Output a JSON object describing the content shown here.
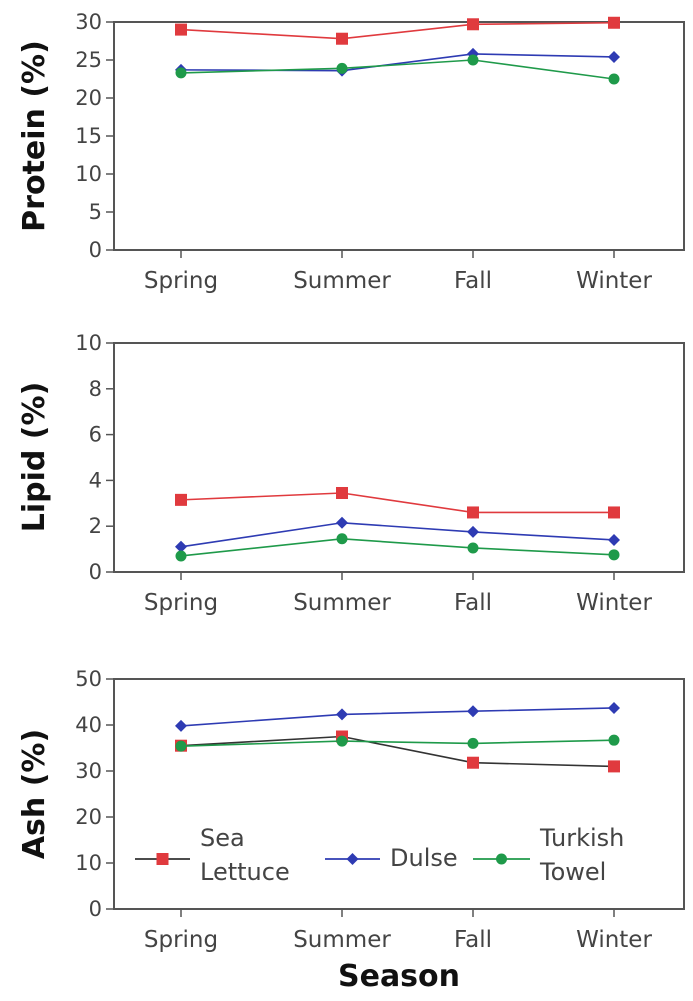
{
  "chart_data": [
    {
      "type": "line",
      "ylabel": "Protein (%)",
      "xlabel": "",
      "categories": [
        "Spring",
        "Summer",
        "Fall",
        "Winter"
      ],
      "ylim": [
        0,
        30
      ],
      "yticks": [
        0,
        5,
        10,
        15,
        20,
        25,
        30
      ],
      "series": [
        {
          "name": "Sea Lettuce",
          "color": "#e03a3e",
          "marker": "square",
          "values": [
            29.0,
            27.8,
            29.7,
            29.9
          ]
        },
        {
          "name": "Dulse",
          "color": "#2e3bb3",
          "marker": "diamond",
          "values": [
            23.7,
            23.6,
            25.8,
            25.4
          ]
        },
        {
          "name": "Turkish Towel",
          "color": "#1f9a4a",
          "marker": "circle",
          "values": [
            23.3,
            23.9,
            25.0,
            22.5
          ]
        }
      ]
    },
    {
      "type": "line",
      "ylabel": "Lipid (%)",
      "xlabel": "",
      "categories": [
        "Spring",
        "Summer",
        "Fall",
        "Winter"
      ],
      "ylim": [
        0,
        10
      ],
      "yticks": [
        0,
        2,
        4,
        6,
        8,
        10
      ],
      "series": [
        {
          "name": "Sea Lettuce",
          "color": "#e03a3e",
          "marker": "square",
          "values": [
            3.15,
            3.45,
            2.6,
            2.6
          ]
        },
        {
          "name": "Dulse",
          "color": "#2e3bb3",
          "marker": "diamond",
          "values": [
            1.1,
            2.15,
            1.75,
            1.4
          ]
        },
        {
          "name": "Turkish Towel",
          "color": "#1f9a4a",
          "marker": "circle",
          "values": [
            0.7,
            1.45,
            1.05,
            0.75
          ]
        }
      ]
    },
    {
      "type": "line",
      "ylabel": "Ash (%)",
      "xlabel": "Season",
      "categories": [
        "Spring",
        "Summer",
        "Fall",
        "Winter"
      ],
      "ylim": [
        0,
        50
      ],
      "yticks": [
        0,
        10,
        20,
        30,
        40,
        50
      ],
      "legend": "bottom-inside",
      "series": [
        {
          "name": "Sea Lettuce",
          "color": "#e03a3e",
          "line_color": "#333333",
          "marker": "square",
          "values": [
            35.5,
            37.5,
            31.8,
            31.0
          ]
        },
        {
          "name": "Dulse",
          "color": "#2e3bb3",
          "marker": "diamond",
          "values": [
            39.8,
            42.3,
            43.0,
            43.7
          ]
        },
        {
          "name": "Turkish Towel",
          "color": "#1f9a4a",
          "marker": "circle",
          "values": [
            35.4,
            36.5,
            36.0,
            36.7
          ]
        }
      ]
    }
  ],
  "legend": {
    "items": [
      {
        "label_lines": [
          "Sea",
          "Lettuce"
        ],
        "color": "#e03a3e",
        "line_color": "#333333",
        "marker": "square"
      },
      {
        "label_lines": [
          "Dulse"
        ],
        "color": "#2e3bb3",
        "line_color": "#2e3bb3",
        "marker": "diamond"
      },
      {
        "label_lines": [
          "Turkish",
          "Towel"
        ],
        "color": "#1f9a4a",
        "line_color": "#1f9a4a",
        "marker": "circle"
      }
    ]
  }
}
